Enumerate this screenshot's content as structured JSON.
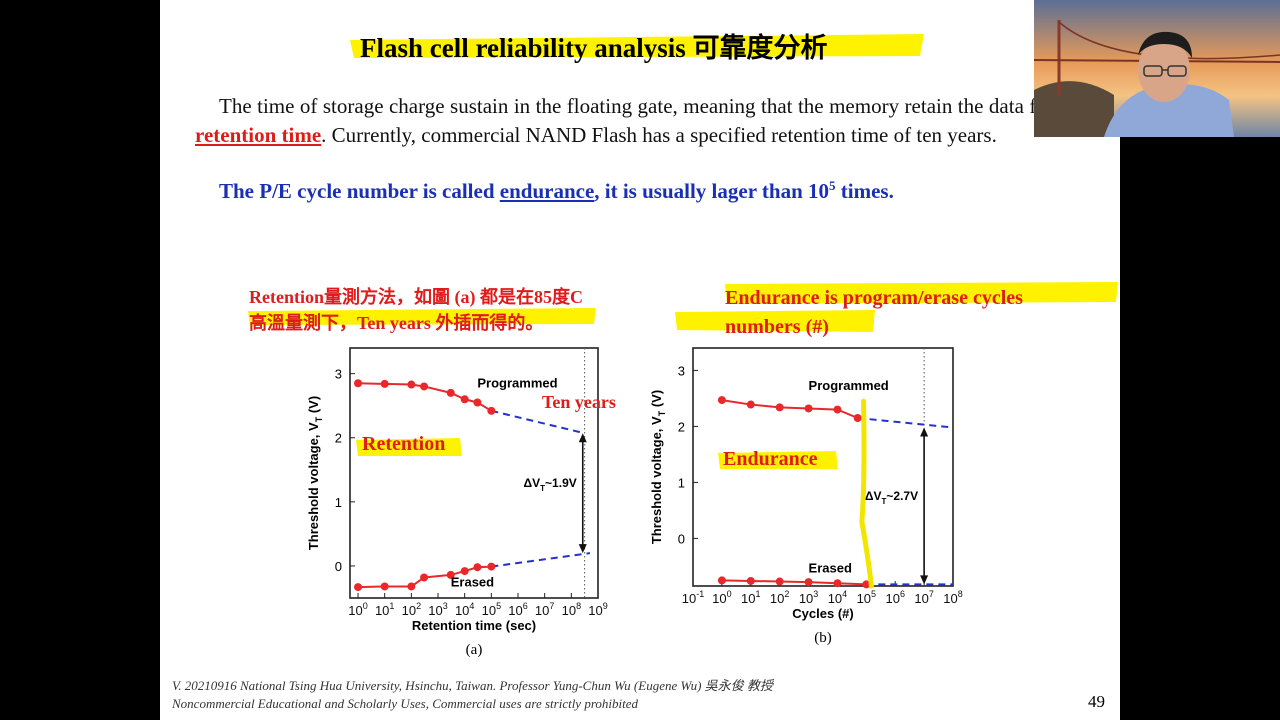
{
  "slide": {
    "title": "Flash cell reliability analysis 可靠度分析",
    "paragraph": {
      "part1": "The time of storage charge sustain in the floating gate, meaning that the memory retain the data for the ",
      "highlight": "retention time",
      "part2": ". Currently, commercial NAND Flash has a specified retention time of ten years."
    },
    "endurance_line": {
      "prefix": "The P/E cycle number is called ",
      "underlined": "endurance",
      "middle": ", it is usually lager than 10",
      "sup": "5",
      "suffix": " times."
    },
    "note_left_1": "Retention量測方法，如圖 (a) 都是在85度C",
    "note_left_2": "高溫量測下，Ten years 外插而得的。",
    "note_right_1": "Endurance is program/erase cycles",
    "note_right_2": "numbers (#)",
    "tag_ten_years": "Ten years",
    "tag_retention": "Retention",
    "tag_endurance": "Endurance",
    "footer_1": "V. 20210916 National Tsing Hua University, Hsinchu, Taiwan. Professor Yung-Chun Wu (Eugene Wu) 吳永俊 教授",
    "footer_2": "Noncommercial Educational and Scholarly Uses, Commercial uses are strictly prohibited",
    "page_number": "49"
  },
  "chart_data": [
    {
      "type": "line",
      "panel_label": "(a)",
      "xlabel": "Retention time (sec)",
      "ylabel": "Threshold voltage, V_T (V)",
      "x_scale": "log",
      "xlim": [
        0.5,
        1000000000
      ],
      "ylim": [
        -0.5,
        3.4
      ],
      "x_tick_labels": [
        "10^0",
        "10^1",
        "10^2",
        "10^3",
        "10^4",
        "10^5",
        "10^6",
        "10^7",
        "10^8",
        "10^9"
      ],
      "y_tick_labels": [
        "0",
        "1",
        "2",
        "3"
      ],
      "reference_line_x": 315360000,
      "series": [
        {
          "name": "Programmed",
          "x": [
            1,
            10,
            100,
            300,
            3000,
            10000,
            30000,
            100000
          ],
          "y": [
            2.85,
            2.84,
            2.83,
            2.8,
            2.7,
            2.6,
            2.55,
            2.42
          ],
          "extrapolation": {
            "x": [
              100000,
              315360000
            ],
            "y": [
              2.42,
              2.07
            ]
          }
        },
        {
          "name": "Erased",
          "x": [
            1,
            10,
            100,
            300,
            3000,
            10000,
            30000,
            100000
          ],
          "y": [
            -0.33,
            -0.32,
            -0.32,
            -0.18,
            -0.14,
            -0.08,
            -0.02,
            -0.01
          ],
          "extrapolation": {
            "x": [
              100000,
              500000000
            ],
            "y": [
              -0.01,
              0.2
            ]
          }
        }
      ],
      "annotation": "ΔV_T~1.9V"
    },
    {
      "type": "line",
      "panel_label": "(b)",
      "xlabel": "Cycles (#)",
      "ylabel": "Threshold voltage, V_T (V)",
      "x_scale": "log",
      "xlim": [
        0.1,
        100000000
      ],
      "ylim": [
        -0.85,
        3.4
      ],
      "x_tick_labels": [
        "10^-1",
        "10^0",
        "10^1",
        "10^2",
        "10^3",
        "10^4",
        "10^5",
        "10^6",
        "10^7",
        "10^8"
      ],
      "y_tick_labels": [
        "0",
        "1",
        "2",
        "3"
      ],
      "reference_line_x": 10000000,
      "series": [
        {
          "name": "Programmed",
          "x": [
            1,
            10,
            100,
            1000,
            10000,
            50000
          ],
          "y": [
            2.47,
            2.39,
            2.34,
            2.32,
            2.3,
            2.15
          ],
          "extrapolation": {
            "x": [
              50000,
              100000000
            ],
            "y": [
              2.15,
              1.98
            ]
          }
        },
        {
          "name": "Erased",
          "x": [
            1,
            10,
            100,
            1000,
            10000,
            100000
          ],
          "y": [
            -0.75,
            -0.76,
            -0.77,
            -0.78,
            -0.8,
            -0.82
          ],
          "extrapolation": {
            "x": [
              100000,
              100000000
            ],
            "y": [
              -0.82,
              -0.82
            ]
          }
        }
      ],
      "annotation": "ΔV_T~2.7V"
    }
  ]
}
